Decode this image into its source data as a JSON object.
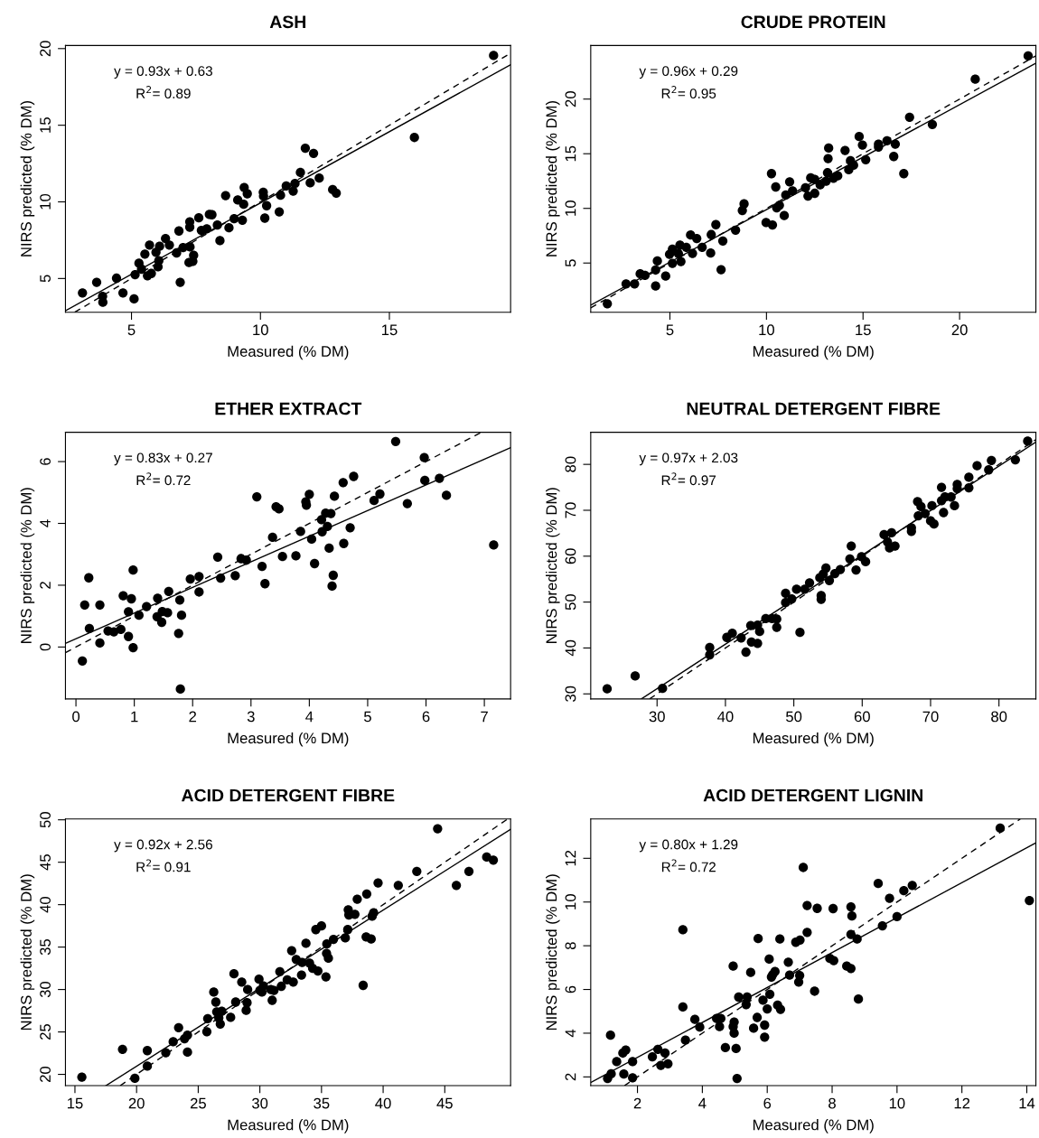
{
  "chart_data": [
    {
      "type": "scatter",
      "title": "ASH",
      "xlabel": "Measured (% DM)",
      "ylabel": "NIRS predicted (% DM)",
      "annotations": [
        "y = 0.93x + 0.63",
        "R$^{2}$= 0.89"
      ],
      "xlim": [
        2.44,
        19.7
      ],
      "ylim": [
        2.8,
        20.2
      ],
      "xticks": [
        5,
        10,
        15
      ],
      "yticks": [
        5,
        10,
        15,
        20
      ],
      "grid": false,
      "series": [
        {
          "color": "#000000",
          "marker": "circle",
          "x": [
            19.04,
            15.97,
            11.74,
            12.06,
            11.55,
            12.28,
            11.93,
            12.8,
            12.94,
            11.34,
            11.0,
            11.27,
            10.78,
            10.11,
            10.12,
            10.24,
            10.73,
            10.17,
            9.37,
            9.49,
            9.12,
            9.35,
            9.3,
            8.98,
            8.78,
            8.65,
            8.43,
            8.33,
            8.12,
            8.02,
            7.61,
            7.26,
            7.26,
            7.71,
            7.92,
            6.84,
            6.32,
            6.47,
            6.09,
            5.7,
            5.95,
            5.52,
            6.06,
            6.03,
            5.29,
            5.39,
            5.14,
            5.62,
            5.77,
            6.75,
            7.0,
            7.27,
            7.41,
            7.38,
            7.23,
            6.89,
            4.42,
            3.65,
            3.1,
            3.88,
            3.89,
            4.67,
            5.1
          ],
          "values": [
            19.55,
            14.2,
            13.5,
            13.16,
            11.92,
            11.55,
            11.24,
            10.8,
            10.57,
            11.2,
            11.04,
            10.7,
            10.43,
            10.63,
            10.37,
            9.75,
            9.35,
            8.94,
            10.94,
            10.53,
            10.12,
            9.84,
            8.8,
            8.9,
            8.31,
            10.41,
            7.47,
            8.49,
            9.16,
            9.18,
            8.96,
            8.7,
            8.35,
            8.14,
            8.24,
            8.1,
            7.61,
            7.18,
            7.1,
            7.18,
            6.71,
            6.59,
            6.16,
            5.76,
            6.0,
            5.61,
            5.25,
            5.18,
            5.33,
            6.67,
            7.02,
            7.06,
            6.51,
            6.12,
            6.04,
            4.75,
            5.02,
            4.75,
            4.06,
            3.84,
            3.45,
            4.06,
            3.67
          ]
        },
        {
          "type": "line",
          "color": "#000000",
          "line_style": "solid",
          "marker": "none",
          "x": [
            2.44,
            19.7
          ],
          "values": [
            2.9,
            18.95
          ]
        },
        {
          "type": "line",
          "color": "#000000",
          "line_style": "dashed",
          "marker": "none",
          "x": [
            2.8,
            19.7
          ],
          "values": [
            2.8,
            19.7
          ]
        }
      ]
    },
    {
      "type": "scatter",
      "title": "CRUDE PROTEIN",
      "xlabel": "Measured (% DM)",
      "ylabel": "NIRS predicted (% DM)",
      "annotations": [
        "y = 0.96x + 0.29",
        "R$^{2}$= 0.95"
      ],
      "xlim": [
        0.9,
        23.95
      ],
      "ylim": [
        0.5,
        24.9
      ],
      "xticks": [
        5,
        10,
        15,
        20
      ],
      "yticks": [
        5,
        10,
        15,
        20
      ],
      "grid": false,
      "series": [
        {
          "color": "#000000",
          "marker": "circle",
          "x": [
            23.55,
            20.81,
            17.41,
            18.59,
            17.11,
            16.59,
            16.67,
            16.24,
            15.8,
            15.8,
            14.8,
            14.97,
            15.14,
            14.07,
            13.22,
            13.19,
            13.16,
            14.35,
            14.51,
            14.26,
            13.69,
            13.47,
            13.09,
            12.78,
            12.29,
            12.5,
            12.02,
            12.15,
            12.5,
            11.35,
            11.2,
            11.0,
            10.26,
            10.48,
            10.67,
            10.53,
            10.92,
            9.98,
            10.31,
            8.84,
            8.75,
            8.4,
            7.38,
            7.74,
            7.14,
            7.11,
            7.65,
            6.67,
            6.39,
            6.07,
            5.85,
            5.52,
            5.13,
            4.98,
            5.44,
            6.17,
            5.13,
            5.57,
            4.35,
            4.26,
            4.78,
            3.71,
            3.46,
            3.17,
            2.73,
            4.26,
            1.76
          ],
          "values": [
            23.95,
            21.82,
            18.34,
            17.68,
            13.18,
            14.75,
            15.88,
            16.19,
            15.88,
            15.61,
            16.57,
            15.8,
            14.45,
            15.3,
            15.52,
            14.56,
            13.26,
            14.36,
            13.95,
            13.54,
            12.98,
            12.76,
            12.49,
            12.15,
            12.79,
            12.65,
            11.88,
            11.13,
            11.38,
            11.6,
            12.43,
            11.22,
            13.18,
            11.96,
            10.28,
            10.06,
            9.34,
            8.7,
            8.48,
            10.41,
            9.81,
            8.01,
            8.51,
            7.02,
            7.6,
            5.91,
            4.39,
            6.44,
            7.24,
            7.57,
            6.44,
            6.63,
            6.27,
            5.8,
            5.86,
            5.88,
            4.97,
            5.14,
            5.19,
            4.36,
            3.81,
            3.87,
            4.01,
            3.09,
            3.09,
            2.9,
            1.27
          ]
        },
        {
          "type": "line",
          "color": "#000000",
          "line_style": "solid",
          "marker": "none",
          "x": [
            0.9,
            23.95
          ],
          "values": [
            1.15,
            23.28
          ]
        },
        {
          "type": "line",
          "color": "#000000",
          "line_style": "dashed",
          "marker": "none",
          "x": [
            0.9,
            23.95
          ],
          "values": [
            0.9,
            23.95
          ]
        }
      ]
    },
    {
      "type": "scatter",
      "title": "ETHER EXTRACT",
      "xlabel": "Measured (% DM)",
      "ylabel": "NIRS predicted (% DM)",
      "annotations": [
        "y = 0.83x + 0.27",
        "R$^{2}$= 0.72"
      ],
      "xlim": [
        -0.18,
        7.45
      ],
      "ylim": [
        -1.68,
        6.95
      ],
      "xticks": [
        0,
        1,
        2,
        3,
        4,
        5,
        6,
        7
      ],
      "yticks": [
        0,
        2,
        4,
        6
      ],
      "grid": false,
      "series": [
        {
          "color": "#000000",
          "marker": "circle",
          "x": [
            5.48,
            5.97,
            5.98,
            6.23,
            6.35,
            5.68,
            7.16,
            5.11,
            5.21,
            4.76,
            4.58,
            4.43,
            4.0,
            3.94,
            3.95,
            3.1,
            3.43,
            3.48,
            4.28,
            4.37,
            4.21,
            4.31,
            4.22,
            4.7,
            4.59,
            4.34,
            4.04,
            3.85,
            3.37,
            3.54,
            3.77,
            4.09,
            4.41,
            4.39,
            3.19,
            3.24,
            2.83,
            2.92,
            2.73,
            2.43,
            2.48,
            2.11,
            2.11,
            1.96,
            1.78,
            1.81,
            1.76,
            1.79,
            1.59,
            1.57,
            1.48,
            1.4,
            1.39,
            1.47,
            1.21,
            1.08,
            0.98,
            0.95,
            0.9,
            0.81,
            0.9,
            0.98,
            0.77,
            0.65,
            0.55,
            0.41,
            0.41,
            0.22,
            0.15,
            0.23,
            0.11
          ],
          "values": [
            6.65,
            6.13,
            5.39,
            5.46,
            4.91,
            4.64,
            3.3,
            4.74,
            4.95,
            5.52,
            5.32,
            4.88,
            4.94,
            4.7,
            4.59,
            4.86,
            4.54,
            4.47,
            4.33,
            4.32,
            4.12,
            3.9,
            3.73,
            3.86,
            3.35,
            3.2,
            3.49,
            3.74,
            3.55,
            2.93,
            2.95,
            2.7,
            2.32,
            1.97,
            2.61,
            2.05,
            2.86,
            2.81,
            2.31,
            2.91,
            2.23,
            2.28,
            1.78,
            2.2,
            1.52,
            1.03,
            0.44,
            -1.36,
            1.8,
            1.11,
            1.15,
            1.58,
            0.98,
            0.8,
            1.31,
            1.03,
            2.49,
            1.56,
            1.14,
            1.66,
            0.34,
            -0.02,
            0.57,
            0.49,
            0.52,
            1.36,
            0.13,
            2.24,
            1.36,
            0.6,
            -0.45
          ]
        },
        {
          "type": "line",
          "color": "#000000",
          "line_style": "solid",
          "marker": "none",
          "x": [
            -0.18,
            7.45
          ],
          "values": [
            0.12,
            6.45
          ]
        },
        {
          "type": "line",
          "color": "#000000",
          "line_style": "dashed",
          "marker": "none",
          "x": [
            -0.18,
            6.95
          ],
          "values": [
            -0.18,
            6.95
          ]
        }
      ]
    },
    {
      "type": "scatter",
      "title": "NEUTRAL DETERGENT FIBRE",
      "xlabel": "Measured (% DM)",
      "ylabel": "NIRS predicted (% DM)",
      "annotations": [
        "y = 0.97x + 2.03",
        "R$^{2}$= 0.97"
      ],
      "xlim": [
        20.3,
        85.4
      ],
      "ylim": [
        28.9,
        87.0
      ],
      "xticks": [
        30,
        40,
        50,
        60,
        70,
        80
      ],
      "yticks": [
        30,
        40,
        50,
        60,
        70,
        80
      ],
      "grid": false,
      "series": [
        {
          "color": "#000000",
          "marker": "circle",
          "x": [
            84.2,
            82.4,
            78.9,
            78.5,
            76.8,
            75.6,
            75.6,
            73.9,
            73.9,
            71.6,
            73.5,
            73.0,
            72.1,
            71.6,
            71.9,
            70.2,
            69.2,
            68.2,
            68.1,
            68.6,
            70.0,
            70.5,
            67.2,
            67.2,
            64.3,
            63.2,
            63.7,
            64.8,
            64.0,
            58.4,
            58.2,
            59.9,
            60.5,
            59.1,
            56.8,
            56.0,
            54.7,
            54.3,
            53.8,
            55.2,
            52.3,
            51.6,
            50.4,
            54.0,
            54.0,
            49.7,
            48.8,
            48.8,
            50.9,
            47.5,
            46.8,
            45.9,
            47.5,
            45.0,
            43.7,
            44.7,
            43.8,
            44.7,
            43.0,
            42.3,
            41.0,
            40.2,
            37.7,
            37.7,
            30.8,
            26.8,
            22.7
          ],
          "values": [
            85.07,
            81.0,
            80.86,
            78.8,
            79.7,
            77.2,
            74.9,
            75.6,
            74.7,
            75.0,
            71.0,
            72.9,
            72.9,
            72.1,
            69.5,
            71.0,
            69.3,
            68.8,
            71.9,
            70.8,
            67.7,
            67.0,
            66.2,
            65.4,
            65.1,
            64.7,
            63.1,
            62.2,
            61.8,
            62.2,
            59.4,
            59.9,
            58.8,
            57.0,
            57.1,
            56.2,
            57.4,
            56.1,
            55.3,
            54.7,
            54.2,
            52.8,
            52.8,
            51.4,
            50.6,
            50.7,
            51.9,
            49.9,
            43.4,
            46.3,
            46.4,
            46.4,
            44.5,
            43.6,
            44.9,
            45.0,
            41.3,
            41.0,
            39.1,
            42.2,
            43.2,
            42.3,
            40.1,
            38.5,
            31.2,
            33.9,
            31.1
          ]
        },
        {
          "type": "line",
          "color": "#000000",
          "line_style": "solid",
          "marker": "none",
          "x": [
            27.7,
            85.4
          ],
          "values": [
            28.9,
            84.87
          ]
        },
        {
          "type": "line",
          "color": "#000000",
          "line_style": "dashed",
          "marker": "none",
          "x": [
            28.9,
            85.4
          ],
          "values": [
            28.9,
            85.4
          ]
        }
      ]
    },
    {
      "type": "scatter",
      "title": "ACID DETERGENT FIBRE",
      "xlabel": "Measured (% DM)",
      "ylabel": "NIRS predicted (% DM)",
      "annotations": [
        "y = 0.92x + 2.56",
        "R$^{2}$= 0.91"
      ],
      "xlim": [
        14.23,
        50.34
      ],
      "ylim": [
        18.67,
        50.1
      ],
      "xticks": [
        15,
        20,
        25,
        30,
        35,
        40,
        45
      ],
      "yticks": [
        20,
        25,
        30,
        35,
        40,
        45,
        50
      ],
      "grid": false,
      "series": [
        {
          "color": "#000000",
          "marker": "circle",
          "x": [
            44.42,
            48.4,
            48.94,
            46.96,
            42.73,
            45.94,
            41.23,
            39.59,
            38.67,
            37.9,
            37.17,
            37.22,
            37.71,
            39.23,
            39.11,
            37.13,
            36.93,
            38.62,
            39.03,
            38.38,
            35.97,
            35.43,
            35.41,
            35.56,
            35.36,
            35.0,
            34.54,
            33.74,
            32.58,
            32.95,
            33.43,
            34.03,
            34.28,
            34.71,
            33.38,
            31.62,
            32.22,
            32.71,
            31.74,
            30.89,
            31.14,
            30.29,
            29.93,
            30.0,
            30.17,
            31.0,
            28.53,
            27.9,
            29.01,
            28.96,
            28.89,
            28.04,
            27.63,
            26.91,
            26.26,
            26.43,
            26.5,
            26.67,
            26.79,
            25.77,
            25.7,
            24.13,
            23.89,
            23.41,
            24.13,
            22.97,
            22.37,
            20.87,
            20.87,
            18.86,
            19.86,
            15.56
          ],
          "values": [
            48.95,
            45.61,
            45.25,
            43.92,
            43.92,
            42.27,
            42.27,
            42.56,
            41.26,
            40.65,
            39.4,
            38.79,
            38.86,
            39.04,
            38.64,
            37.06,
            36.09,
            36.2,
            35.95,
            30.49,
            35.91,
            35.37,
            34.26,
            33.69,
            31.49,
            37.49,
            37.06,
            35.45,
            34.58,
            33.54,
            33.18,
            33.11,
            32.5,
            32.18,
            31.71,
            32.1,
            31.14,
            30.88,
            30.38,
            29.99,
            29.88,
            30.42,
            31.21,
            29.88,
            29.7,
            28.73,
            30.88,
            31.85,
            29.99,
            28.44,
            27.54,
            28.52,
            26.72,
            27.44,
            29.7,
            28.52,
            27.37,
            26.65,
            25.93,
            26.57,
            25.03,
            24.63,
            24.2,
            25.5,
            22.62,
            23.84,
            22.55,
            22.8,
            20.97,
            22.95,
            19.53,
            19.68
          ]
        },
        {
          "type": "line",
          "color": "#000000",
          "line_style": "solid",
          "marker": "none",
          "x": [
            17.51,
            50.34
          ],
          "values": [
            18.67,
            48.87
          ]
        },
        {
          "type": "line",
          "color": "#000000",
          "line_style": "dashed",
          "marker": "none",
          "x": [
            18.67,
            50.06
          ],
          "values": [
            18.67,
            50.06
          ]
        }
      ]
    },
    {
      "type": "scatter",
      "title": "ACID DETERGENT LIGNIN",
      "xlabel": "Measured (% DM)",
      "ylabel": "NIRS predicted (% DM)",
      "annotations": [
        "y = 0.80x + 1.29",
        "R$^{2}$= 0.72"
      ],
      "xlim": [
        0.56,
        14.28
      ],
      "ylim": [
        1.6,
        13.8
      ],
      "xticks": [
        2,
        4,
        6,
        8,
        10,
        12,
        14
      ],
      "yticks": [
        2,
        4,
        6,
        8,
        10,
        12
      ],
      "grid": false,
      "series": [
        {
          "color": "#000000",
          "marker": "circle",
          "x": [
            13.18,
            14.08,
            9.42,
            9.77,
            10.21,
            10.47,
            10.0,
            9.55,
            7.11,
            7.23,
            7.54,
            8.03,
            8.58,
            8.61,
            8.58,
            8.77,
            3.4,
            5.72,
            6.39,
            6.88,
            7.01,
            7.23,
            7.93,
            8.05,
            8.45,
            8.58,
            8.81,
            6.06,
            6.65,
            4.95,
            5.49,
            6.17,
            6.24,
            6.13,
            6.69,
            7.0,
            6.97,
            7.46,
            5.12,
            5.38,
            5.35,
            6.08,
            5.87,
            6.0,
            6.32,
            6.41,
            3.4,
            3.77,
            3.92,
            3.48,
            4.44,
            4.57,
            4.53,
            4.98,
            4.95,
            4.98,
            5.69,
            5.58,
            5.92,
            5.92,
            4.71,
            5.04,
            5.07,
            1.17,
            1.64,
            1.55,
            1.36,
            1.85,
            1.19,
            1.08,
            1.58,
            1.85,
            2.46,
            2.63,
            2.85,
            2.72,
            2.94
          ],
          "values": [
            13.38,
            10.07,
            10.85,
            10.17,
            10.52,
            10.76,
            9.33,
            8.91,
            11.58,
            9.84,
            9.71,
            9.7,
            9.78,
            9.36,
            8.52,
            8.31,
            8.73,
            8.33,
            8.31,
            8.16,
            8.26,
            8.61,
            7.42,
            7.32,
            7.07,
            6.96,
            5.56,
            7.39,
            7.25,
            7.07,
            6.78,
            6.68,
            6.82,
            6.57,
            6.66,
            6.64,
            6.34,
            5.92,
            5.65,
            5.65,
            5.31,
            5.78,
            5.51,
            5.11,
            5.28,
            5.09,
            5.2,
            4.63,
            4.28,
            3.68,
            4.67,
            4.67,
            4.3,
            4.51,
            4.3,
            4.0,
            4.72,
            4.23,
            4.37,
            3.82,
            3.34,
            3.3,
            1.93,
            3.91,
            3.23,
            3.09,
            2.7,
            2.7,
            2.14,
            1.93,
            2.13,
            1.96,
            2.92,
            3.26,
            3.09,
            2.53,
            2.6
          ]
        },
        {
          "type": "line",
          "color": "#000000",
          "line_style": "solid",
          "marker": "none",
          "x": [
            0.56,
            14.28
          ],
          "values": [
            1.74,
            12.71
          ]
        },
        {
          "type": "line",
          "color": "#000000",
          "line_style": "dashed",
          "marker": "none",
          "x": [
            1.6,
            13.8
          ],
          "values": [
            1.6,
            13.8
          ]
        }
      ]
    }
  ]
}
